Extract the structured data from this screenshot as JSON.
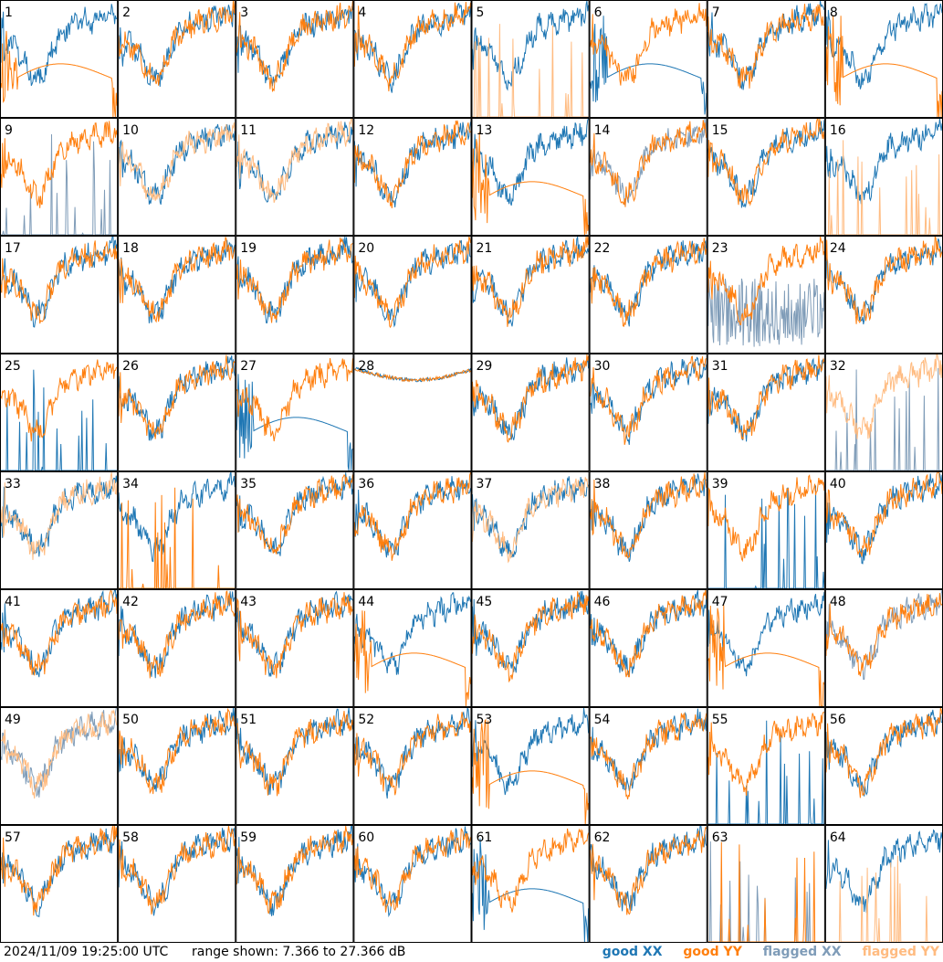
{
  "footer": {
    "timestamp": "2024/11/09 19:25:00 UTC",
    "range_text": "range shown: 7.366 to 27.366 dB",
    "legend": {
      "good_xx": "good XX",
      "good_yy": "good YY",
      "flagged_xx": "flagged XX",
      "flagged_yy": "flagged YY"
    }
  },
  "colors": {
    "good_xx": "#1f77b4",
    "good_yy": "#ff7f0e",
    "flagged_xx": "#7f9cb8",
    "flagged_yy": "#ffbb80"
  },
  "chart_data": {
    "type": "line",
    "title": "",
    "xlabel": "",
    "ylabel": "",
    "grid": false,
    "legend_placement": "bottom-right",
    "ylim": [
      7.366,
      27.366
    ],
    "yunit": "dB",
    "rows": 8,
    "cols": 8,
    "panels": [
      {
        "id": 1,
        "xx": {
          "style": "good",
          "kind": "normal"
        },
        "yy": {
          "style": "good",
          "kind": "smooth"
        }
      },
      {
        "id": 2,
        "xx": {
          "style": "good",
          "kind": "normal"
        },
        "yy": {
          "style": "good",
          "kind": "normal"
        }
      },
      {
        "id": 3,
        "xx": {
          "style": "good",
          "kind": "normal"
        },
        "yy": {
          "style": "good",
          "kind": "normal"
        }
      },
      {
        "id": 4,
        "xx": {
          "style": "good",
          "kind": "normal"
        },
        "yy": {
          "style": "good",
          "kind": "normal"
        }
      },
      {
        "id": 5,
        "xx": {
          "style": "good",
          "kind": "normal"
        },
        "yy": {
          "style": "flagged",
          "kind": "spikes"
        }
      },
      {
        "id": 6,
        "xx": {
          "style": "good",
          "kind": "smooth"
        },
        "yy": {
          "style": "good",
          "kind": "normal"
        }
      },
      {
        "id": 7,
        "xx": {
          "style": "good",
          "kind": "normal"
        },
        "yy": {
          "style": "good",
          "kind": "normal"
        }
      },
      {
        "id": 8,
        "xx": {
          "style": "good",
          "kind": "normal"
        },
        "yy": {
          "style": "good",
          "kind": "smooth"
        }
      },
      {
        "id": 9,
        "xx": {
          "style": "flagged",
          "kind": "spikes"
        },
        "yy": {
          "style": "good",
          "kind": "normal"
        }
      },
      {
        "id": 10,
        "xx": {
          "style": "good",
          "kind": "normal"
        },
        "yy": {
          "style": "flagged",
          "kind": "normal"
        }
      },
      {
        "id": 11,
        "xx": {
          "style": "good",
          "kind": "normal"
        },
        "yy": {
          "style": "flagged",
          "kind": "normal"
        }
      },
      {
        "id": 12,
        "xx": {
          "style": "good",
          "kind": "normal"
        },
        "yy": {
          "style": "good",
          "kind": "normal"
        }
      },
      {
        "id": 13,
        "xx": {
          "style": "good",
          "kind": "normal"
        },
        "yy": {
          "style": "good",
          "kind": "smooth"
        }
      },
      {
        "id": 14,
        "xx": {
          "style": "flagged",
          "kind": "normal"
        },
        "yy": {
          "style": "good",
          "kind": "normal"
        }
      },
      {
        "id": 15,
        "xx": {
          "style": "good",
          "kind": "normal"
        },
        "yy": {
          "style": "good",
          "kind": "normal"
        }
      },
      {
        "id": 16,
        "xx": {
          "style": "good",
          "kind": "normal"
        },
        "yy": {
          "style": "flagged",
          "kind": "spikes"
        }
      },
      {
        "id": 17,
        "xx": {
          "style": "good",
          "kind": "normal"
        },
        "yy": {
          "style": "good",
          "kind": "normal"
        }
      },
      {
        "id": 18,
        "xx": {
          "style": "good",
          "kind": "normal"
        },
        "yy": {
          "style": "good",
          "kind": "normal"
        }
      },
      {
        "id": 19,
        "xx": {
          "style": "good",
          "kind": "normal"
        },
        "yy": {
          "style": "good",
          "kind": "normal"
        }
      },
      {
        "id": 20,
        "xx": {
          "style": "good",
          "kind": "normal"
        },
        "yy": {
          "style": "good",
          "kind": "normal"
        }
      },
      {
        "id": 21,
        "xx": {
          "style": "good",
          "kind": "normal"
        },
        "yy": {
          "style": "good",
          "kind": "normal"
        }
      },
      {
        "id": 22,
        "xx": {
          "style": "good",
          "kind": "normal"
        },
        "yy": {
          "style": "good",
          "kind": "normal"
        }
      },
      {
        "id": 23,
        "xx": {
          "style": "flagged",
          "kind": "noisy"
        },
        "yy": {
          "style": "good",
          "kind": "normal"
        }
      },
      {
        "id": 24,
        "xx": {
          "style": "good",
          "kind": "normal"
        },
        "yy": {
          "style": "good",
          "kind": "normal"
        }
      },
      {
        "id": 25,
        "xx": {
          "style": "good",
          "kind": "spikes"
        },
        "yy": {
          "style": "good",
          "kind": "normal"
        }
      },
      {
        "id": 26,
        "xx": {
          "style": "good",
          "kind": "normal"
        },
        "yy": {
          "style": "good",
          "kind": "normal"
        }
      },
      {
        "id": 27,
        "xx": {
          "style": "good",
          "kind": "smooth"
        },
        "yy": {
          "style": "good",
          "kind": "normal"
        }
      },
      {
        "id": 28,
        "xx": {
          "style": "good",
          "kind": "flat"
        },
        "yy": {
          "style": "good",
          "kind": "flat"
        }
      },
      {
        "id": 29,
        "xx": {
          "style": "good",
          "kind": "normal"
        },
        "yy": {
          "style": "good",
          "kind": "normal"
        }
      },
      {
        "id": 30,
        "xx": {
          "style": "good",
          "kind": "normal"
        },
        "yy": {
          "style": "good",
          "kind": "normal"
        }
      },
      {
        "id": 31,
        "xx": {
          "style": "good",
          "kind": "normal"
        },
        "yy": {
          "style": "good",
          "kind": "normal"
        }
      },
      {
        "id": 32,
        "xx": {
          "style": "flagged",
          "kind": "spikes"
        },
        "yy": {
          "style": "flagged",
          "kind": "normal"
        }
      },
      {
        "id": 33,
        "xx": {
          "style": "good",
          "kind": "normal"
        },
        "yy": {
          "style": "flagged",
          "kind": "normal"
        }
      },
      {
        "id": 34,
        "xx": {
          "style": "good",
          "kind": "normal"
        },
        "yy": {
          "style": "good",
          "kind": "spikes"
        }
      },
      {
        "id": 35,
        "xx": {
          "style": "good",
          "kind": "normal"
        },
        "yy": {
          "style": "good",
          "kind": "normal"
        }
      },
      {
        "id": 36,
        "xx": {
          "style": "good",
          "kind": "normal"
        },
        "yy": {
          "style": "good",
          "kind": "normal"
        }
      },
      {
        "id": 37,
        "xx": {
          "style": "good",
          "kind": "normal"
        },
        "yy": {
          "style": "flagged",
          "kind": "normal"
        }
      },
      {
        "id": 38,
        "xx": {
          "style": "good",
          "kind": "normal"
        },
        "yy": {
          "style": "good",
          "kind": "normal"
        }
      },
      {
        "id": 39,
        "xx": {
          "style": "good",
          "kind": "spikes"
        },
        "yy": {
          "style": "good",
          "kind": "normal"
        }
      },
      {
        "id": 40,
        "xx": {
          "style": "good",
          "kind": "normal"
        },
        "yy": {
          "style": "good",
          "kind": "normal"
        }
      },
      {
        "id": 41,
        "xx": {
          "style": "good",
          "kind": "normal"
        },
        "yy": {
          "style": "good",
          "kind": "normal"
        }
      },
      {
        "id": 42,
        "xx": {
          "style": "good",
          "kind": "normal"
        },
        "yy": {
          "style": "good",
          "kind": "normal"
        }
      },
      {
        "id": 43,
        "xx": {
          "style": "good",
          "kind": "normal"
        },
        "yy": {
          "style": "good",
          "kind": "normal"
        }
      },
      {
        "id": 44,
        "xx": {
          "style": "good",
          "kind": "normal"
        },
        "yy": {
          "style": "good",
          "kind": "smooth"
        }
      },
      {
        "id": 45,
        "xx": {
          "style": "good",
          "kind": "normal"
        },
        "yy": {
          "style": "good",
          "kind": "normal"
        }
      },
      {
        "id": 46,
        "xx": {
          "style": "good",
          "kind": "normal"
        },
        "yy": {
          "style": "good",
          "kind": "normal"
        }
      },
      {
        "id": 47,
        "xx": {
          "style": "good",
          "kind": "normal"
        },
        "yy": {
          "style": "good",
          "kind": "smooth"
        }
      },
      {
        "id": 48,
        "xx": {
          "style": "flagged",
          "kind": "normal"
        },
        "yy": {
          "style": "good",
          "kind": "normal"
        }
      },
      {
        "id": 49,
        "xx": {
          "style": "flagged",
          "kind": "normal"
        },
        "yy": {
          "style": "flagged",
          "kind": "normal"
        }
      },
      {
        "id": 50,
        "xx": {
          "style": "good",
          "kind": "normal"
        },
        "yy": {
          "style": "good",
          "kind": "normal"
        }
      },
      {
        "id": 51,
        "xx": {
          "style": "good",
          "kind": "normal"
        },
        "yy": {
          "style": "good",
          "kind": "normal"
        }
      },
      {
        "id": 52,
        "xx": {
          "style": "good",
          "kind": "normal"
        },
        "yy": {
          "style": "good",
          "kind": "normal"
        }
      },
      {
        "id": 53,
        "xx": {
          "style": "good",
          "kind": "normal"
        },
        "yy": {
          "style": "good",
          "kind": "smooth"
        }
      },
      {
        "id": 54,
        "xx": {
          "style": "good",
          "kind": "normal"
        },
        "yy": {
          "style": "good",
          "kind": "normal"
        }
      },
      {
        "id": 55,
        "xx": {
          "style": "good",
          "kind": "spikes"
        },
        "yy": {
          "style": "good",
          "kind": "normal"
        }
      },
      {
        "id": 56,
        "xx": {
          "style": "good",
          "kind": "normal"
        },
        "yy": {
          "style": "good",
          "kind": "normal"
        }
      },
      {
        "id": 57,
        "xx": {
          "style": "good",
          "kind": "normal"
        },
        "yy": {
          "style": "good",
          "kind": "normal"
        }
      },
      {
        "id": 58,
        "xx": {
          "style": "good",
          "kind": "normal"
        },
        "yy": {
          "style": "good",
          "kind": "normal"
        }
      },
      {
        "id": 59,
        "xx": {
          "style": "good",
          "kind": "normal"
        },
        "yy": {
          "style": "good",
          "kind": "normal"
        }
      },
      {
        "id": 60,
        "xx": {
          "style": "good",
          "kind": "normal"
        },
        "yy": {
          "style": "good",
          "kind": "normal"
        }
      },
      {
        "id": 61,
        "xx": {
          "style": "good",
          "kind": "smooth"
        },
        "yy": {
          "style": "good",
          "kind": "normal"
        }
      },
      {
        "id": 62,
        "xx": {
          "style": "good",
          "kind": "normal"
        },
        "yy": {
          "style": "good",
          "kind": "normal"
        }
      },
      {
        "id": 63,
        "xx": {
          "style": "flagged",
          "kind": "spikes"
        },
        "yy": {
          "style": "good",
          "kind": "spikes"
        }
      },
      {
        "id": 64,
        "xx": {
          "style": "good",
          "kind": "normal"
        },
        "yy": {
          "style": "flagged",
          "kind": "spikes"
        }
      }
    ]
  }
}
